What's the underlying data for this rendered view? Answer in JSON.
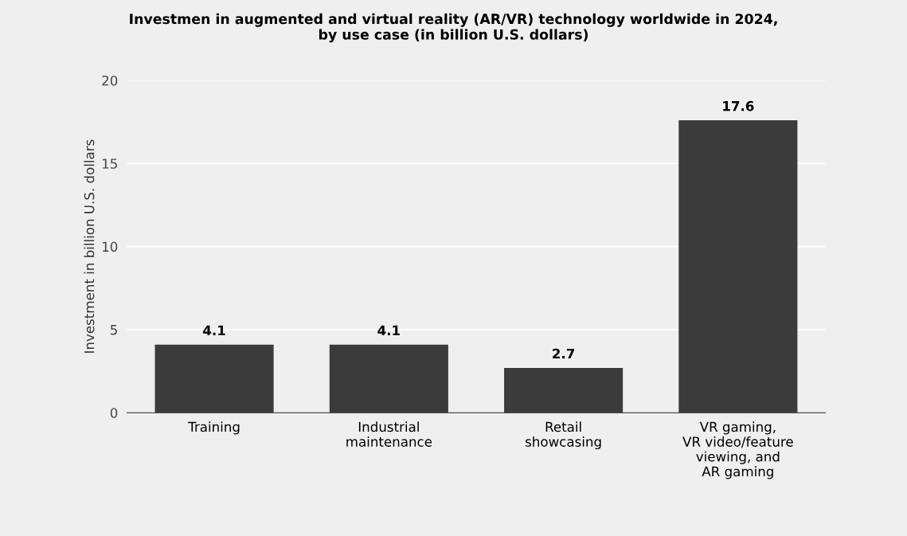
{
  "chart_data": {
    "type": "bar",
    "title": "Investmen in augmented and virtual reality (AR/VR) technology worldwide in 2024,\nby use case (in billion U.S. dollars)",
    "ylabel": "Investment in billion U.S. dollars",
    "categories": [
      "Training",
      "Industrial\nmaintenance",
      "Retail\nshowcasing",
      "VR gaming,\nVR video/feature\nviewing, and\nAR gaming"
    ],
    "values": [
      4.1,
      4.1,
      2.7,
      17.6
    ],
    "color": "#3b3b3b",
    "ylim": [
      0,
      20
    ],
    "yticks": [
      0,
      5,
      10,
      15,
      20
    ],
    "grid": "y",
    "data_labels": true
  }
}
